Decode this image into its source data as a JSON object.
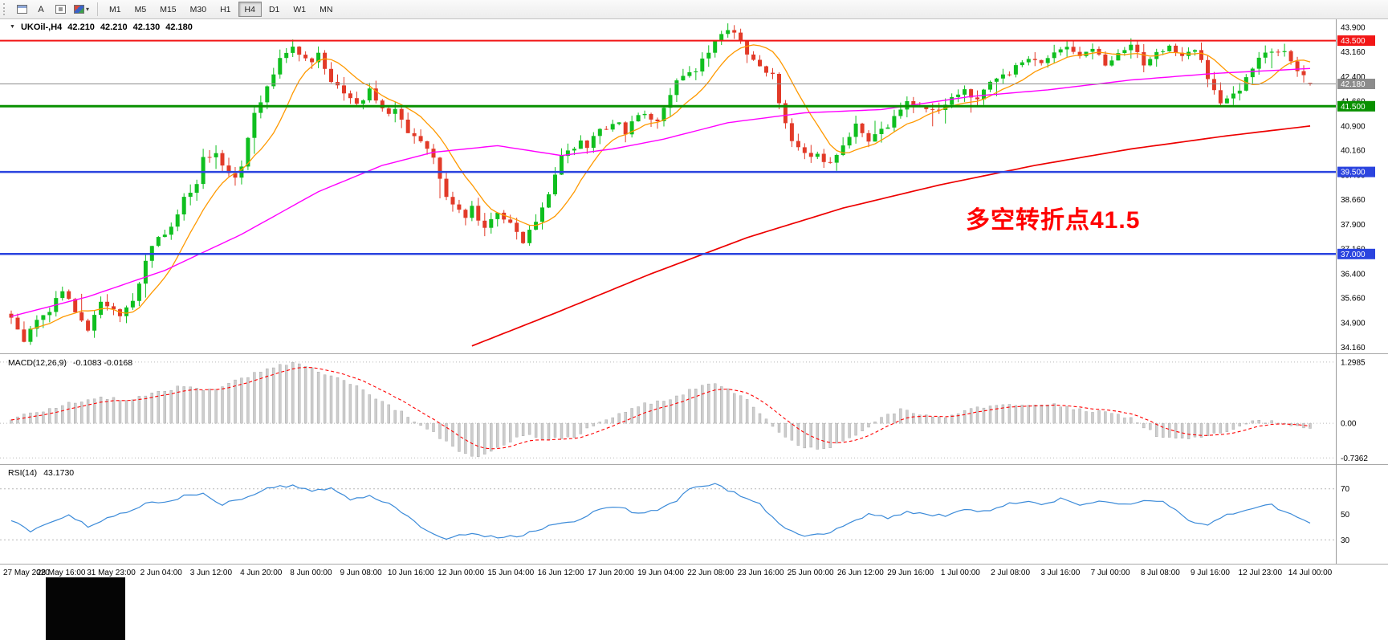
{
  "toolbar": {
    "cursor_label": "A",
    "caret": "▾",
    "timeframes": [
      "M1",
      "M5",
      "M15",
      "M30",
      "H1",
      "H4",
      "D1",
      "W1",
      "MN"
    ],
    "active": "H4"
  },
  "chart_header": {
    "collapse_glyph": "▼",
    "symbol": "UKOil-,H4",
    "open": "42.210",
    "high": "42.210",
    "low": "42.130",
    "close": "42.180"
  },
  "annotation": {
    "text": "多空转折点41.5",
    "color": "#FF0000"
  },
  "macd_panel": {
    "title": "MACD(12,26,9)",
    "values": "-0.1083 -0.0168"
  },
  "rsi_panel": {
    "title": "RSI(14)",
    "value": "43.1730"
  },
  "chart_data": {
    "type": "candlestick",
    "symbol": "UKOil-",
    "timeframe": "H4",
    "ylim": [
      34.0,
      44.15
    ],
    "y_ticks": [
      43.9,
      43.16,
      42.4,
      41.66,
      40.9,
      40.16,
      39.4,
      38.66,
      37.9,
      37.16,
      36.4,
      35.66,
      34.9,
      34.16
    ],
    "current_ohlc": {
      "open": 42.21,
      "high": 42.21,
      "low": 42.13,
      "close": 42.18
    },
    "price_lines": [
      {
        "value": 43.5,
        "label": "43.500",
        "color": "#F21616",
        "width": 2
      },
      {
        "value": 41.5,
        "label": "41.500",
        "color": "#089000",
        "width": 3
      },
      {
        "value": 39.5,
        "label": "39.500",
        "color": "#2B44DF",
        "width": 2.5
      },
      {
        "value": 37.0,
        "label": "37.000",
        "color": "#2B44DF",
        "width": 2.5
      },
      {
        "value": 42.18,
        "label": "42.180",
        "color": "#8C8C8C",
        "width": 1,
        "current": true
      }
    ],
    "candles": {
      "count": 204,
      "up_color": "#0FBF1F",
      "down_color": "#E23A28",
      "body_noise": 0.2,
      "wick_noise": 0.26,
      "keyframes": [
        [
          0,
          35.0
        ],
        [
          2,
          34.35
        ],
        [
          4,
          34.9
        ],
        [
          6,
          35.3
        ],
        [
          8,
          35.85
        ],
        [
          11,
          35.0
        ],
        [
          12,
          34.7
        ],
        [
          14,
          35.6
        ],
        [
          17,
          35.15
        ],
        [
          19,
          35.5
        ],
        [
          21,
          36.8
        ],
        [
          23,
          37.5
        ],
        [
          25,
          37.8
        ],
        [
          27,
          38.7
        ],
        [
          29,
          39.2
        ],
        [
          30,
          39.9
        ],
        [
          32,
          40.15
        ],
        [
          33,
          39.6
        ],
        [
          35,
          39.4
        ],
        [
          36,
          39.7
        ],
        [
          38,
          41.3
        ],
        [
          41,
          42.4
        ],
        [
          42,
          42.9
        ],
        [
          44,
          43.3
        ],
        [
          47,
          42.8
        ],
        [
          48,
          43.1
        ],
        [
          50,
          42.3
        ],
        [
          53,
          41.7
        ],
        [
          54,
          41.5
        ],
        [
          56,
          42.0
        ],
        [
          59,
          41.2
        ],
        [
          60,
          41.4
        ],
        [
          62,
          40.7
        ],
        [
          65,
          40.2
        ],
        [
          66,
          40.0
        ],
        [
          68,
          38.7
        ],
        [
          71,
          38.2
        ],
        [
          72,
          38.5
        ],
        [
          74,
          37.7
        ],
        [
          76,
          38.3
        ],
        [
          78,
          37.9
        ],
        [
          80,
          37.4
        ],
        [
          83,
          38.4
        ],
        [
          84,
          38.9
        ],
        [
          86,
          39.9
        ],
        [
          89,
          40.4
        ],
        [
          90,
          40.2
        ],
        [
          92,
          40.8
        ],
        [
          95,
          41.0
        ],
        [
          96,
          40.6
        ],
        [
          98,
          41.3
        ],
        [
          101,
          41.0
        ],
        [
          102,
          41.5
        ],
        [
          104,
          42.3
        ],
        [
          107,
          42.6
        ],
        [
          108,
          42.9
        ],
        [
          110,
          43.5
        ],
        [
          112,
          43.9
        ],
        [
          114,
          43.4
        ],
        [
          116,
          42.9
        ],
        [
          119,
          42.4
        ],
        [
          120,
          41.6
        ],
        [
          122,
          40.4
        ],
        [
          125,
          39.9
        ],
        [
          126,
          40.1
        ],
        [
          128,
          39.7
        ],
        [
          131,
          40.6
        ],
        [
          132,
          41.0
        ],
        [
          134,
          40.5
        ],
        [
          137,
          40.9
        ],
        [
          138,
          41.2
        ],
        [
          140,
          41.6
        ],
        [
          143,
          41.4
        ],
        [
          145,
          41.3
        ],
        [
          147,
          41.8
        ],
        [
          149,
          42.0
        ],
        [
          151,
          41.7
        ],
        [
          153,
          42.2
        ],
        [
          155,
          42.4
        ],
        [
          157,
          42.7
        ],
        [
          159,
          43.0
        ],
        [
          161,
          42.8
        ],
        [
          163,
          43.1
        ],
        [
          165,
          43.3
        ],
        [
          167,
          43.0
        ],
        [
          169,
          43.2
        ],
        [
          171,
          42.8
        ],
        [
          173,
          43.1
        ],
        [
          175,
          43.3
        ],
        [
          177,
          42.8
        ],
        [
          179,
          43.1
        ],
        [
          181,
          43.4
        ],
        [
          183,
          43.0
        ],
        [
          185,
          43.3
        ],
        [
          186,
          42.9
        ],
        [
          188,
          41.9
        ],
        [
          189,
          41.6
        ],
        [
          191,
          41.8
        ],
        [
          193,
          42.3
        ],
        [
          195,
          42.9
        ],
        [
          197,
          43.2
        ],
        [
          199,
          43.1
        ],
        [
          201,
          42.6
        ],
        [
          203,
          42.18
        ]
      ]
    },
    "moving_averages": [
      {
        "name": "fast-ma",
        "color": "#FF9900",
        "type": "sma",
        "period": 9,
        "width": 1.3
      },
      {
        "name": "medium-ma",
        "color": "#FF00FF",
        "type": "keyframes",
        "width": 1.4,
        "keyframes": [
          [
            0,
            35.1
          ],
          [
            12,
            35.7
          ],
          [
            24,
            36.5
          ],
          [
            36,
            37.6
          ],
          [
            48,
            38.9
          ],
          [
            58,
            39.7
          ],
          [
            66,
            40.1
          ],
          [
            76,
            40.3
          ],
          [
            86,
            40.0
          ],
          [
            94,
            40.2
          ],
          [
            102,
            40.5
          ],
          [
            112,
            41.0
          ],
          [
            124,
            41.3
          ],
          [
            136,
            41.4
          ],
          [
            150,
            41.8
          ],
          [
            162,
            42.0
          ],
          [
            175,
            42.3
          ],
          [
            188,
            42.5
          ],
          [
            203,
            42.65
          ]
        ]
      },
      {
        "name": "slow-ma",
        "color": "#ED0000",
        "type": "keyframes",
        "width": 1.7,
        "keyframes": [
          [
            72,
            34.2
          ],
          [
            85,
            35.2
          ],
          [
            100,
            36.4
          ],
          [
            115,
            37.5
          ],
          [
            130,
            38.4
          ],
          [
            145,
            39.1
          ],
          [
            160,
            39.7
          ],
          [
            175,
            40.2
          ],
          [
            190,
            40.6
          ],
          [
            203,
            40.9
          ]
        ]
      }
    ],
    "macd": {
      "ylim": [
        -0.85,
        1.45
      ],
      "hist_color": "#CDCDCD",
      "signal_color": "#FF0000",
      "ticks": [
        {
          "label": "1.2985",
          "value": 1.2985
        },
        {
          "label": "0.00",
          "value": 0
        },
        {
          "label": "-0.7362",
          "value": -0.7362
        }
      ],
      "current": -0.1083,
      "keyframes": [
        [
          0,
          0.1
        ],
        [
          6,
          0.3
        ],
        [
          10,
          0.45
        ],
        [
          14,
          0.55
        ],
        [
          18,
          0.5
        ],
        [
          22,
          0.62
        ],
        [
          27,
          0.8
        ],
        [
          31,
          0.7
        ],
        [
          35,
          0.9
        ],
        [
          40,
          1.15
        ],
        [
          44,
          1.3
        ],
        [
          48,
          1.1
        ],
        [
          53,
          0.85
        ],
        [
          58,
          0.45
        ],
        [
          62,
          0.15
        ],
        [
          66,
          -0.2
        ],
        [
          70,
          -0.6
        ],
        [
          73,
          -0.72
        ],
        [
          77,
          -0.45
        ],
        [
          80,
          -0.25
        ],
        [
          84,
          -0.35
        ],
        [
          88,
          -0.28
        ],
        [
          91,
          -0.05
        ],
        [
          95,
          0.2
        ],
        [
          99,
          0.42
        ],
        [
          103,
          0.5
        ],
        [
          107,
          0.75
        ],
        [
          110,
          0.85
        ],
        [
          114,
          0.6
        ],
        [
          118,
          0.1
        ],
        [
          121,
          -0.3
        ],
        [
          124,
          -0.55
        ],
        [
          128,
          -0.5
        ],
        [
          132,
          -0.25
        ],
        [
          135,
          0.05
        ],
        [
          139,
          0.28
        ],
        [
          142,
          0.2
        ],
        [
          146,
          0.1
        ],
        [
          150,
          0.3
        ],
        [
          155,
          0.42
        ],
        [
          159,
          0.35
        ],
        [
          163,
          0.4
        ],
        [
          167,
          0.3
        ],
        [
          171,
          0.22
        ],
        [
          175,
          0.12
        ],
        [
          179,
          -0.25
        ],
        [
          182,
          -0.35
        ],
        [
          186,
          -0.28
        ],
        [
          190,
          -0.15
        ],
        [
          194,
          0.05
        ],
        [
          198,
          0.02
        ],
        [
          203,
          -0.108
        ]
      ]
    },
    "rsi": {
      "ylim": [
        12,
        88
      ],
      "line_color": "#3C8BD9",
      "levels": [
        70,
        30
      ],
      "ticks": [
        {
          "label": "70",
          "value": 70
        },
        {
          "label": "50",
          "value": 50
        },
        {
          "label": "30",
          "value": 30
        }
      ],
      "current": 43.173,
      "keyframes": [
        [
          0,
          46
        ],
        [
          3,
          36
        ],
        [
          6,
          44
        ],
        [
          9,
          50
        ],
        [
          12,
          40
        ],
        [
          15,
          48
        ],
        [
          18,
          52
        ],
        [
          21,
          58
        ],
        [
          24,
          60
        ],
        [
          27,
          64
        ],
        [
          30,
          66
        ],
        [
          33,
          58
        ],
        [
          36,
          62
        ],
        [
          40,
          70
        ],
        [
          44,
          73
        ],
        [
          47,
          68
        ],
        [
          50,
          71
        ],
        [
          53,
          62
        ],
        [
          56,
          64
        ],
        [
          59,
          58
        ],
        [
          62,
          48
        ],
        [
          64,
          40
        ],
        [
          68,
          30
        ],
        [
          72,
          36
        ],
        [
          76,
          31
        ],
        [
          80,
          34
        ],
        [
          84,
          41
        ],
        [
          88,
          45
        ],
        [
          92,
          54
        ],
        [
          95,
          56
        ],
        [
          98,
          50
        ],
        [
          101,
          53
        ],
        [
          104,
          60
        ],
        [
          106,
          70
        ],
        [
          110,
          73
        ],
        [
          114,
          65
        ],
        [
          117,
          58
        ],
        [
          120,
          42
        ],
        [
          124,
          33
        ],
        [
          128,
          36
        ],
        [
          131,
          44
        ],
        [
          134,
          50
        ],
        [
          137,
          47
        ],
        [
          140,
          52
        ],
        [
          143,
          50
        ],
        [
          146,
          49
        ],
        [
          149,
          54
        ],
        [
          152,
          52
        ],
        [
          155,
          57
        ],
        [
          158,
          60
        ],
        [
          161,
          58
        ],
        [
          164,
          62
        ],
        [
          167,
          58
        ],
        [
          170,
          61
        ],
        [
          173,
          57
        ],
        [
          176,
          60
        ],
        [
          180,
          60
        ],
        [
          184,
          46
        ],
        [
          187,
          41
        ],
        [
          190,
          50
        ],
        [
          194,
          55
        ],
        [
          197,
          57
        ],
        [
          200,
          50
        ],
        [
          203,
          43.17
        ]
      ]
    },
    "x_labels": [
      "27 May 2020",
      "28 May 16:00",
      "31 May 23:00",
      "2 Jun 04:00",
      "3 Jun 12:00",
      "4 Jun 20:00",
      "8 Jun 00:00",
      "9 Jun 08:00",
      "10 Jun 16:00",
      "12 Jun 00:00",
      "15 Jun 04:00",
      "16 Jun 12:00",
      "17 Jun 20:00",
      "19 Jun 04:00",
      "22 Jun 08:00",
      "23 Jun 16:00",
      "25 Jun 00:00",
      "26 Jun 12:00",
      "29 Jun 16:00",
      "1 Jul 00:00",
      "2 Jul 08:00",
      "3 Jul 16:00",
      "7 Jul 00:00",
      "8 Jul 08:00",
      "9 Jul 16:00",
      "12 Jul 23:00",
      "14 Jul 00:00"
    ]
  }
}
